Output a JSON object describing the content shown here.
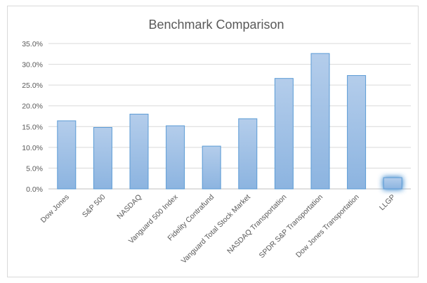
{
  "chart_data": {
    "type": "bar",
    "title": "Benchmark Comparison",
    "xlabel": "",
    "ylabel": "",
    "ylim": [
      0,
      35
    ],
    "y_ticks": [
      "0.0%",
      "5.0%",
      "10.0%",
      "15.0%",
      "20.0%",
      "25.0%",
      "30.0%",
      "35.0%"
    ],
    "y_tick_values": [
      0,
      5,
      10,
      15,
      20,
      25,
      30,
      35
    ],
    "categories": [
      "Dow Jones",
      "S&P 500",
      "NASDAQ",
      "Vanguard 500 Index",
      "Fidelity Contrafund",
      "Vanguard Total Stock Market",
      "NASDAQ Transportation",
      "SPDR S&P Transportation",
      "Dow Jones Transportation",
      "LLGP"
    ],
    "values": [
      16.4,
      14.8,
      18.0,
      15.2,
      10.3,
      16.9,
      26.6,
      32.6,
      27.3,
      2.7
    ],
    "grid": true,
    "legend": "none",
    "highlighted_category": "LLGP",
    "colors": {
      "bar_top": "#b4cdeb",
      "bar_bottom": "#8cb4e0",
      "bar_border": "#5b9bd5",
      "highlight_glow": "#5b9bd5",
      "text": "#595959",
      "grid": "#d9d9d9"
    }
  }
}
